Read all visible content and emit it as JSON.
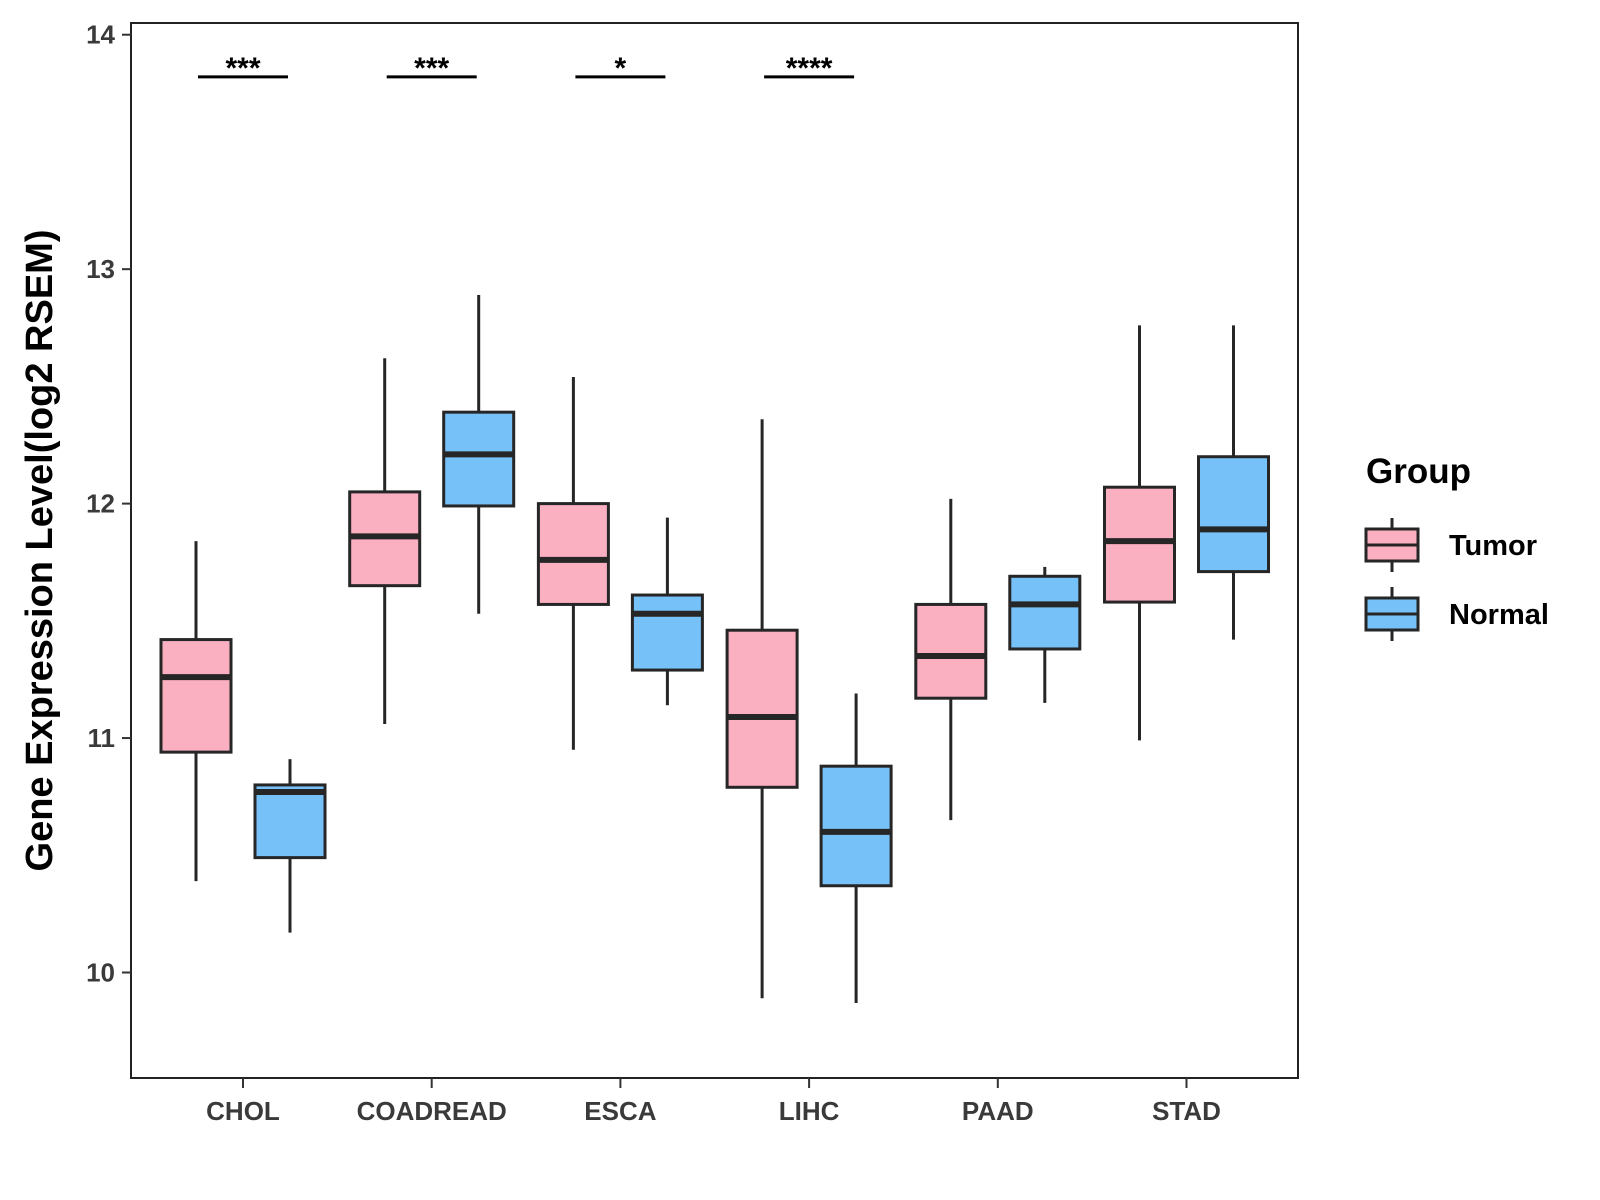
{
  "chart_data": {
    "type": "boxplot",
    "title": "",
    "xlabel": "",
    "ylabel": "Gene Expression Level(log2 RSEM)",
    "ylim": [
      9.55,
      14.05
    ],
    "yticks": [
      10,
      11,
      12,
      13,
      14
    ],
    "grid": false,
    "legend": {
      "title": "Group",
      "position": "right",
      "entries": [
        {
          "name": "Tumor",
          "color": "#FBB0C2"
        },
        {
          "name": "Normal",
          "color": "#76C1F8"
        }
      ]
    },
    "categories": [
      "CHOL",
      "COADREAD",
      "ESCA",
      "LIHC",
      "PAAD",
      "STAD"
    ],
    "series": [
      {
        "name": "Tumor",
        "color": "#FBB0C2",
        "boxes": [
          {
            "min": 10.39,
            "q1": 10.94,
            "median": 11.26,
            "q3": 11.42,
            "max": 11.84
          },
          {
            "min": 11.06,
            "q1": 11.65,
            "median": 11.86,
            "q3": 12.05,
            "max": 12.62
          },
          {
            "min": 10.95,
            "q1": 11.57,
            "median": 11.76,
            "q3": 12.0,
            "max": 12.54
          },
          {
            "min": 9.89,
            "q1": 10.79,
            "median": 11.09,
            "q3": 11.46,
            "max": 12.36
          },
          {
            "min": 10.65,
            "q1": 11.17,
            "median": 11.35,
            "q3": 11.57,
            "max": 12.02
          },
          {
            "min": 10.99,
            "q1": 11.58,
            "median": 11.84,
            "q3": 12.07,
            "max": 12.76
          }
        ]
      },
      {
        "name": "Normal",
        "color": "#76C1F8",
        "boxes": [
          {
            "min": 10.17,
            "q1": 10.49,
            "median": 10.77,
            "q3": 10.8,
            "max": 10.91
          },
          {
            "min": 11.53,
            "q1": 11.99,
            "median": 12.21,
            "q3": 12.39,
            "max": 12.89
          },
          {
            "min": 11.14,
            "q1": 11.29,
            "median": 11.53,
            "q3": 11.61,
            "max": 11.94
          },
          {
            "min": 9.87,
            "q1": 10.37,
            "median": 10.6,
            "q3": 10.88,
            "max": 11.19
          },
          {
            "min": 11.15,
            "q1": 11.38,
            "median": 11.57,
            "q3": 11.69,
            "max": 11.73
          },
          {
            "min": 11.42,
            "q1": 11.71,
            "median": 11.89,
            "q3": 12.2,
            "max": 12.76
          }
        ]
      }
    ],
    "significance": [
      {
        "category": "CHOL",
        "label": "***"
      },
      {
        "category": "COADREAD",
        "label": "***"
      },
      {
        "category": "ESCA",
        "label": "*"
      },
      {
        "category": "LIHC",
        "label": "****"
      }
    ],
    "significance_level": 13.82
  }
}
